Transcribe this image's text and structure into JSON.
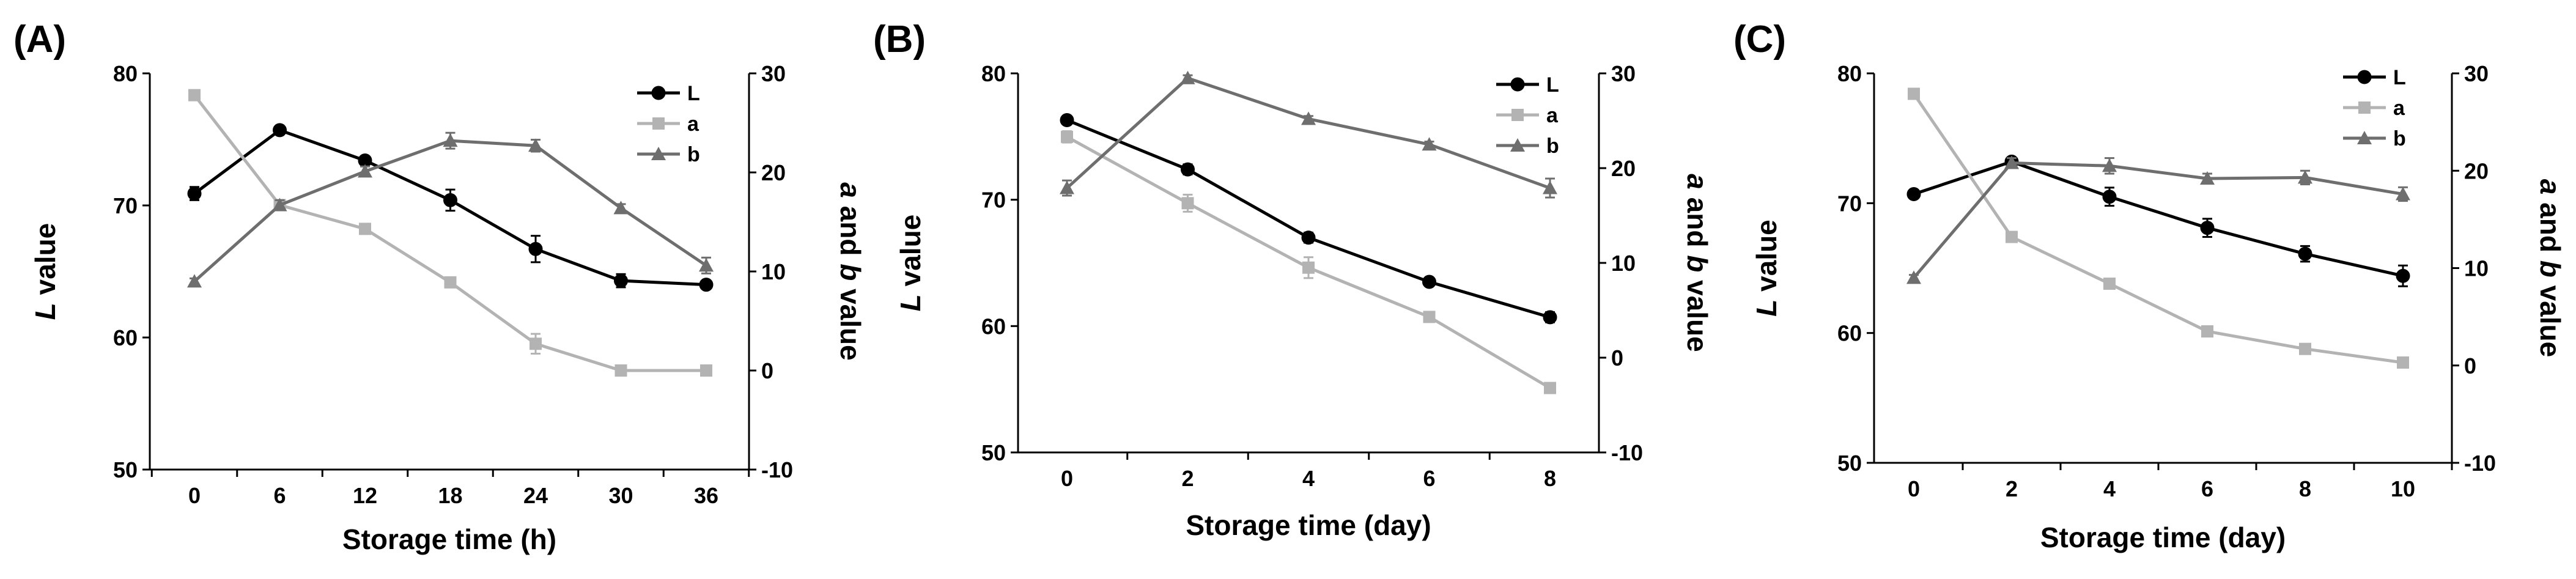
{
  "chart_data": [
    {
      "type": "line",
      "panel_label": "(A)",
      "xlabel": "Storage time (h)",
      "ylabel_prefix": "L",
      "ylabel_suffix": " value",
      "y2label_a": "a",
      "y2label_mid": " and ",
      "y2label_b": "b",
      "y2label_suffix": " value",
      "categories": [
        "0",
        "6",
        "12",
        "18",
        "24",
        "30",
        "36"
      ],
      "ylim": [
        50,
        80
      ],
      "yticks": [
        50,
        60,
        70,
        80
      ],
      "y2lim": [
        -10,
        30
      ],
      "y2ticks": [
        -10,
        0,
        10,
        20,
        30
      ],
      "legend_position": "top-right",
      "series": [
        {
          "name": "L",
          "axis": "left",
          "marker": "circle",
          "color": "#000000",
          "values": [
            70.9,
            75.7,
            73.4,
            70.4,
            66.7,
            64.3,
            64.0
          ],
          "errors": [
            0.5,
            0.3,
            0.3,
            0.8,
            1.0,
            0.5,
            0.3
          ]
        },
        {
          "name": "a",
          "axis": "right",
          "marker": "square",
          "color": "#b3b3b3",
          "values": [
            27.8,
            16.7,
            14.3,
            8.9,
            2.7,
            0.0,
            0.0
          ],
          "errors": [
            0.3,
            0.3,
            0.3,
            0.3,
            1.0,
            0.3,
            0.3
          ]
        },
        {
          "name": "b",
          "axis": "right",
          "marker": "triangle",
          "color": "#6e6e6e",
          "values": [
            9.0,
            16.7,
            20.1,
            23.2,
            22.7,
            16.4,
            10.6
          ],
          "errors": [
            0.3,
            0.5,
            0.5,
            0.8,
            0.6,
            0.4,
            0.8
          ]
        }
      ]
    },
    {
      "type": "line",
      "panel_label": "(B)",
      "xlabel": "Storage time (day)",
      "ylabel_prefix": "L",
      "ylabel_suffix": " value",
      "y2label_a": "a",
      "y2label_mid": " and ",
      "y2label_b": "b",
      "y2label_suffix": " value",
      "categories": [
        "0",
        "2",
        "4",
        "6",
        "8"
      ],
      "ylim": [
        50,
        80
      ],
      "yticks": [
        50,
        60,
        70,
        80
      ],
      "y2lim": [
        -10,
        30
      ],
      "y2ticks": [
        -10,
        0,
        10,
        20,
        30
      ],
      "legend_position": "top-right",
      "series": [
        {
          "name": "L",
          "axis": "left",
          "marker": "circle",
          "color": "#000000",
          "values": [
            76.3,
            72.4,
            67.0,
            63.5,
            60.7
          ],
          "errors": [
            0.3,
            0.4,
            0.4,
            0.3,
            0.4
          ]
        },
        {
          "name": "a",
          "axis": "right",
          "marker": "square",
          "color": "#b3b3b3",
          "values": [
            23.3,
            16.3,
            9.5,
            4.3,
            -3.2
          ],
          "errors": [
            0.6,
            0.9,
            1.1,
            0.3,
            0.3
          ]
        },
        {
          "name": "b",
          "axis": "right",
          "marker": "triangle",
          "color": "#6e6e6e",
          "values": [
            17.9,
            29.5,
            25.2,
            22.5,
            17.9
          ],
          "errors": [
            0.8,
            0.3,
            0.3,
            0.3,
            1.0
          ]
        }
      ]
    },
    {
      "type": "line",
      "panel_label": "(C)",
      "xlabel": "Storage time (day)",
      "ylabel_prefix": "L",
      "ylabel_suffix": " value",
      "y2label_a": "a",
      "y2label_mid": " and ",
      "y2label_b": "b",
      "y2label_suffix": " value",
      "categories": [
        "0",
        "2",
        "4",
        "6",
        "8",
        "10"
      ],
      "ylim": [
        50,
        80
      ],
      "yticks": [
        50,
        60,
        70,
        80
      ],
      "y2lim": [
        -10,
        30
      ],
      "y2ticks": [
        -10,
        0,
        10,
        20,
        30
      ],
      "legend_position": "top-right",
      "series": [
        {
          "name": "L",
          "axis": "left",
          "marker": "circle",
          "color": "#000000",
          "values": [
            70.7,
            73.2,
            70.5,
            68.1,
            66.1,
            64.4
          ],
          "errors": [
            0.3,
            0.3,
            0.7,
            0.7,
            0.6,
            0.8
          ]
        },
        {
          "name": "a",
          "axis": "right",
          "marker": "square",
          "color": "#b3b3b3",
          "values": [
            27.9,
            13.2,
            8.4,
            3.5,
            1.7,
            0.3
          ],
          "errors": [
            0.3,
            0.3,
            0.3,
            0.3,
            0.3,
            0.3
          ]
        },
        {
          "name": "b",
          "axis": "right",
          "marker": "triangle",
          "color": "#6e6e6e",
          "values": [
            9.0,
            20.8,
            20.5,
            19.2,
            19.3,
            17.6
          ],
          "errors": [
            0.3,
            0.5,
            0.8,
            0.5,
            0.7,
            0.7
          ]
        }
      ]
    }
  ]
}
